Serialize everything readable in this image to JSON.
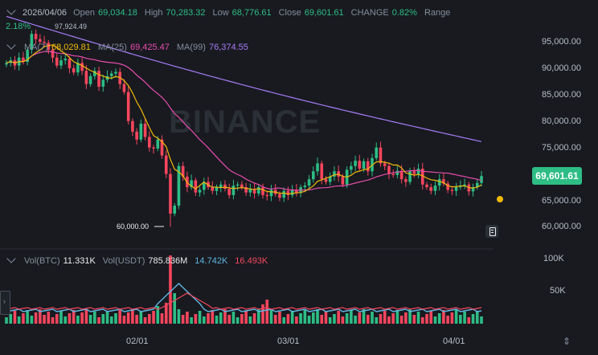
{
  "header": {
    "date": "2026/04/06",
    "open_label": "Open",
    "open": "69,034.18",
    "high_label": "High",
    "high": "70,283.32",
    "low_label": "Low",
    "low": "68,776.61",
    "close_label": "Close",
    "close": "69,601.61",
    "change_label": "CHANGE",
    "change": "0.82%",
    "range_label": "Range",
    "range": "2.18%"
  },
  "ma": {
    "ma7_label": "MA(7)",
    "ma7": "68,029.81",
    "ma25_label": "MA(25)",
    "ma25": "69,425.47",
    "ma99_label": "MA(99)",
    "ma99": "76,374.55"
  },
  "volume_legend": {
    "btc_label": "Vol(BTC)",
    "btc": "11.331K",
    "usdt_label": "Vol(USDT)",
    "usdt": "785.836M",
    "ma1": "14.742K",
    "ma2": "16.493K"
  },
  "price_axis": [
    "95,000.00",
    "90,000.00",
    "85,000.00",
    "80,000.00",
    "75,000.00",
    "70,000.00",
    "65,000.00",
    "60,000.00"
  ],
  "current_price": "69,601.61",
  "volume_axis": [
    "100K",
    "50K"
  ],
  "dates": [
    "02/01",
    "03/01",
    "04/01"
  ],
  "markers": {
    "high": "97,924.49",
    "low": "60,000.00"
  },
  "watermark": "BINANCE",
  "colors": {
    "up": "#2ebd85",
    "down": "#f6465d",
    "ma7": "#f0b90b",
    "ma25": "#e84cad",
    "ma99": "#a77cf6",
    "vol_ma1": "#5fb5e0",
    "vol_ma2": "#f6465d"
  },
  "icons": {
    "notes": "notes-icon",
    "alert": "alert-dot-icon",
    "scale": "scale-toggle-icon",
    "expand": "chevron-right-icon"
  }
}
